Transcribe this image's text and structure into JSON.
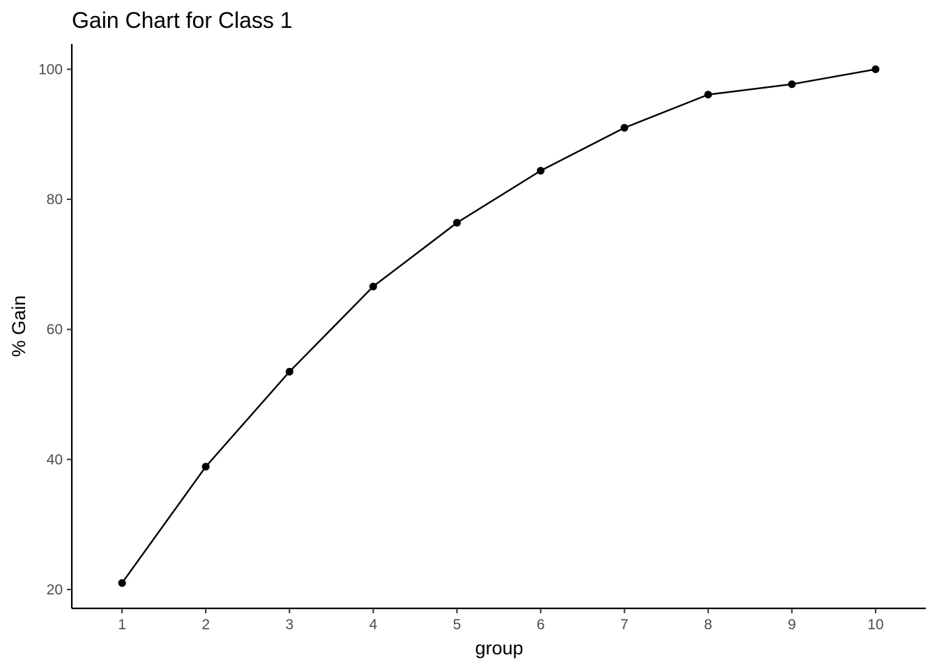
{
  "chart_data": {
    "type": "line",
    "title": "Gain Chart for Class 1",
    "xlabel": "group",
    "ylabel": "% Gain",
    "x": [
      1,
      2,
      3,
      4,
      5,
      6,
      7,
      8,
      9,
      10
    ],
    "series": [
      {
        "values": [
          21.0,
          38.9,
          53.5,
          66.6,
          76.4,
          84.4,
          91.0,
          96.1,
          97.7,
          100.0
        ]
      }
    ],
    "xticks": [
      1,
      2,
      3,
      4,
      5,
      6,
      7,
      8,
      9,
      10
    ],
    "yticks": [
      20,
      40,
      60,
      80,
      100
    ],
    "xlim": [
      0.4,
      10.6
    ],
    "ylim": [
      17.1,
      103.9
    ],
    "grid": false,
    "colors": {
      "line": "#000000",
      "point": "#000000",
      "tick_label": "#4d4d4d"
    }
  }
}
